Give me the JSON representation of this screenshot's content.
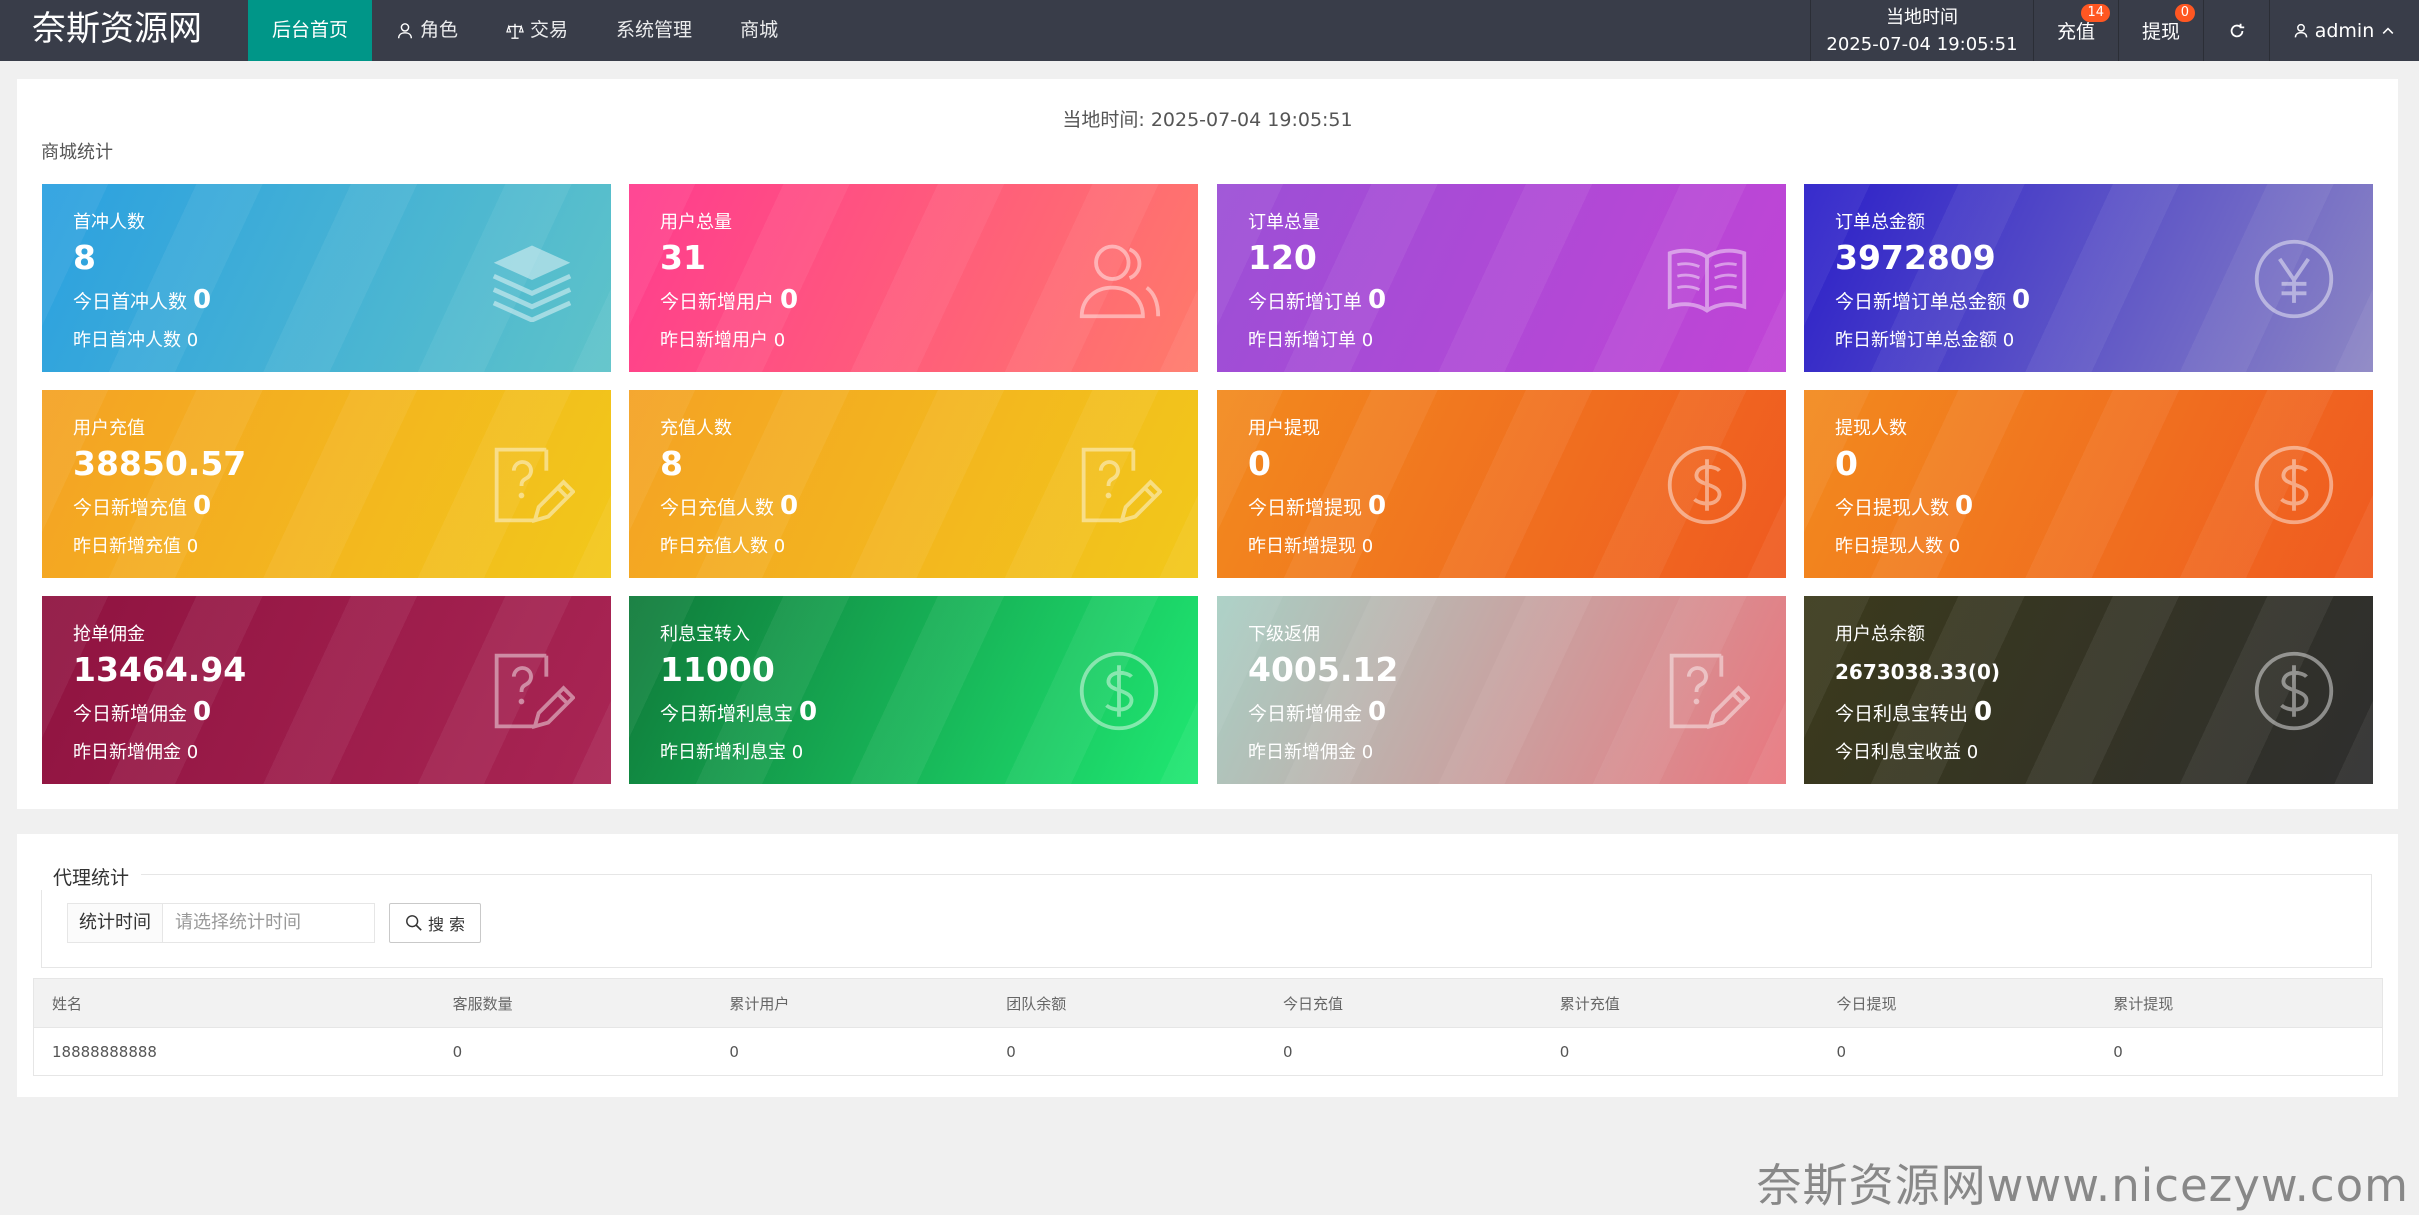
{
  "header": {
    "logo": "奈斯资源网",
    "nav": [
      {
        "label": "后台首页",
        "icon": "none",
        "active": true
      },
      {
        "label": "角色",
        "icon": "user-icon",
        "active": false
      },
      {
        "label": "交易",
        "icon": "scale-icon",
        "active": false
      },
      {
        "label": "系统管理",
        "icon": "none",
        "active": false
      },
      {
        "label": "商城",
        "icon": "none",
        "active": false
      }
    ],
    "time_label": "当地时间",
    "time_value": "2025-07-04 19:05:51",
    "recharge_label": "充值",
    "recharge_badge": "14",
    "withdraw_label": "提现",
    "withdraw_badge": "0",
    "user_label": "admin"
  },
  "stats": {
    "local_time": "当地时间:   2025-07-04 19:05:51",
    "section_title": "商城统计",
    "cards": [
      {
        "title": "首冲人数",
        "value": "8",
        "today_label": "今日首冲人数",
        "today_value": "0",
        "yest": "昨日首冲人数 0",
        "icon": "layers-icon",
        "bg_from": "#2ba0e0",
        "bg_to": "#5ec3c9"
      },
      {
        "title": "用户总量",
        "value": "31",
        "today_label": "今日新增用户",
        "today_value": "0",
        "yest": "昨日新增用户 0",
        "icon": "users-icon",
        "bg_from": "#ff3c8e",
        "bg_to": "#ff7a6a"
      },
      {
        "title": "订单总量",
        "value": "120",
        "today_label": "今日新增订单",
        "today_value": "0",
        "yest": "昨日新增订单 0",
        "icon": "book-icon",
        "bg_from": "#9b4fd6",
        "bg_to": "#c144d6"
      },
      {
        "title": "订单总金额",
        "value": "3972809",
        "today_label": "今日新增订单总金额",
        "today_value": "0",
        "yest": "昨日新增订单总金额 0",
        "icon": "yen-icon",
        "bg_from": "#2b1fc9",
        "bg_to": "#8c86c4"
      },
      {
        "title": "用户充值",
        "value": "38850.57",
        "today_label": "今日新增充值",
        "today_value": "0",
        "yest": "昨日新增充值 0",
        "icon": "question-edit-icon",
        "bg_from": "#f4a224",
        "bg_to": "#f2c81a"
      },
      {
        "title": "充值人数",
        "value": "8",
        "today_label": "今日充值人数",
        "today_value": "0",
        "yest": "昨日充值人数 0",
        "icon": "question-edit-icon",
        "bg_from": "#f4a224",
        "bg_to": "#f2c81a"
      },
      {
        "title": "用户提现",
        "value": "0",
        "today_label": "今日新增提现",
        "today_value": "0",
        "yest": "昨日新增提现 0",
        "icon": "dollar-icon",
        "bg_from": "#f28a1e",
        "bg_to": "#ef5a20"
      },
      {
        "title": "提现人数",
        "value": "0",
        "today_label": "今日提现人数",
        "today_value": "0",
        "yest": "昨日提现人数 0",
        "icon": "dollar-icon",
        "bg_from": "#f28a1e",
        "bg_to": "#ef5a20"
      },
      {
        "title": "抢单佣金",
        "value": "13464.94",
        "today_label": "今日新增佣金",
        "today_value": "0",
        "yest": "昨日新增佣金 0",
        "icon": "question-edit-icon",
        "bg_from": "#8f1340",
        "bg_to": "#a92554"
      },
      {
        "title": "利息宝转入",
        "value": "11000",
        "today_label": "今日新增利息宝",
        "today_value": "0",
        "yest": "昨日新增利息宝 0",
        "icon": "dollar-icon",
        "bg_from": "#0f7a3a",
        "bg_to": "#1fe872"
      },
      {
        "title": "下级返佣",
        "value": "4005.12",
        "today_label": "今日新增佣金",
        "today_value": "0",
        "yest": "昨日新增佣金 0",
        "icon": "question-edit-icon",
        "bg_from": "#a8cfc4",
        "bg_to": "#e9777f"
      },
      {
        "title": "用户总余额",
        "value": "2673038.33(0)",
        "today_label": "今日利息宝转出",
        "today_value": "0",
        "yest": "今日利息宝收益 0",
        "icon": "dollar-icon",
        "bg_from": "#3b3a1c",
        "bg_to": "#2e2e2e"
      }
    ]
  },
  "agent": {
    "legend": "代理统计",
    "field_label": "统计时间",
    "field_placeholder": "请选择统计时间",
    "search_label": "搜 索",
    "columns": [
      "姓名",
      "客服数量",
      "累计用户",
      "团队余额",
      "今日充值",
      "累计充值",
      "今日提现",
      "累计提现"
    ],
    "rows": [
      [
        "18888888888",
        "0",
        "0",
        "0",
        "0",
        "0",
        "0",
        "0"
      ]
    ]
  },
  "watermark": "奈斯资源网www.nicezyw.com"
}
